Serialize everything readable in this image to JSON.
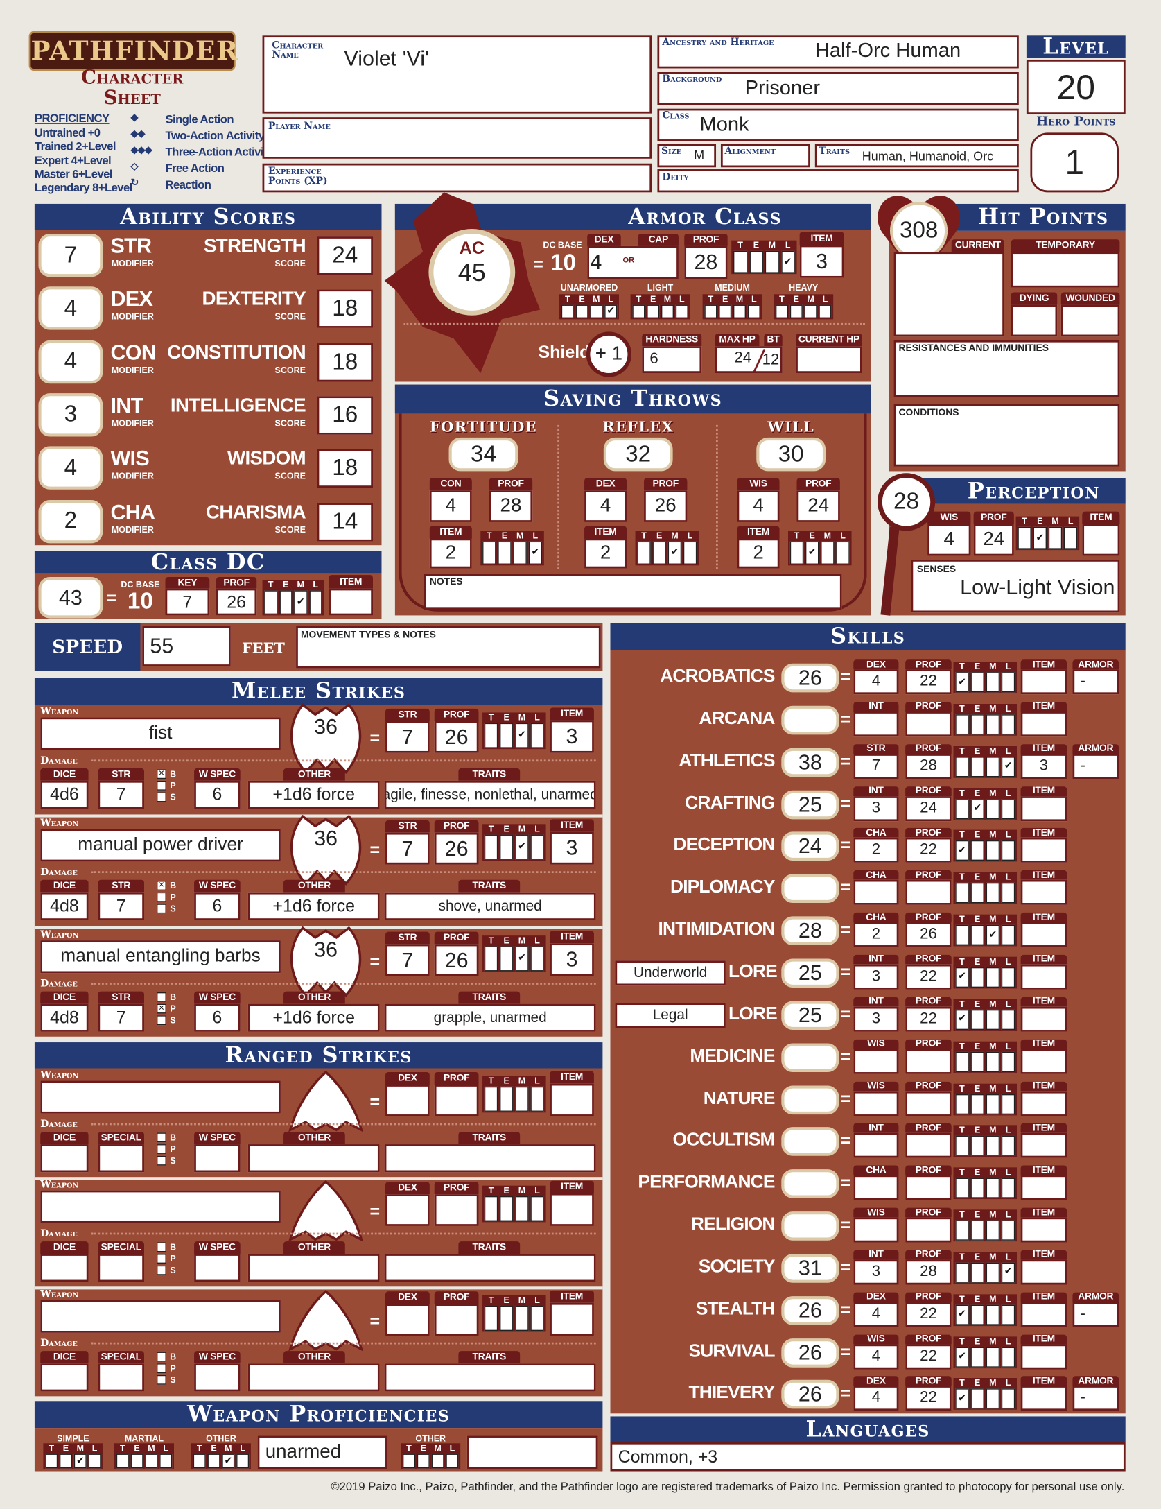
{
  "header": {
    "logo_text": "PATHFINDER",
    "subtitle": "Character Sheet",
    "character_name_label": "Character Name",
    "character_name": "Violet 'Vi'",
    "player_name_label": "Player Name",
    "player_name": "",
    "xp_label": "Experience Points (XP)",
    "xp": "",
    "ancestry_label": "Ancestry and Heritage",
    "ancestry": "Half-Orc Human",
    "background_label": "Background",
    "background": "Prisoner",
    "class_label": "Class",
    "class": "Monk",
    "size_label": "Size",
    "size": "M",
    "alignment_label": "Alignment",
    "alignment": "",
    "traits_label": "Traits",
    "traits": "Human, Humanoid, Orc",
    "deity_label": "Deity",
    "deity": "",
    "level_label": "Level",
    "level": "20",
    "hero_points_label": "Hero Points",
    "hero_points": "1"
  },
  "legend": {
    "proficiency_title": "PROFICIENCY",
    "proficiency": [
      "Untrained +0",
      "Trained 2+Level",
      "Expert 4+Level",
      "Master 6+Level",
      "Legendary 8+Level"
    ],
    "actions": [
      {
        "icon": "single-action-icon",
        "label": "Single Action"
      },
      {
        "icon": "two-action-icon",
        "label": "Two-Action Activity"
      },
      {
        "icon": "three-action-icon",
        "label": "Three-Action Activity"
      },
      {
        "icon": "free-action-icon",
        "label": "Free Action"
      },
      {
        "icon": "reaction-icon",
        "label": "Reaction"
      }
    ]
  },
  "labels": {
    "teml": [
      "T",
      "E",
      "M",
      "L"
    ],
    "bps": [
      "B",
      "P",
      "S"
    ],
    "eq": "=",
    "str": "STR",
    "dex": "DEX",
    "prof": "PROF",
    "item": "ITEM",
    "armor": "ARMOR",
    "dice": "DICE",
    "special": "SPECIAL",
    "wspec": "W SPEC",
    "other": "OTHER",
    "traits": "TRAITS",
    "weapon": "Weapon",
    "damage": "Damage",
    "lore": "LORE"
  },
  "abilities": {
    "title": "Ability Scores",
    "modifier_label": "MODIFIER",
    "score_label": "SCORE",
    "items": [
      {
        "abbr": "STR",
        "name": "STRENGTH",
        "mod": "7",
        "score": "24"
      },
      {
        "abbr": "DEX",
        "name": "DEXTERITY",
        "mod": "4",
        "score": "18"
      },
      {
        "abbr": "CON",
        "name": "CONSTITUTION",
        "mod": "4",
        "score": "18"
      },
      {
        "abbr": "INT",
        "name": "INTELLIGENCE",
        "mod": "3",
        "score": "16"
      },
      {
        "abbr": "WIS",
        "name": "WISDOM",
        "mod": "4",
        "score": "18"
      },
      {
        "abbr": "CHA",
        "name": "CHARISMA",
        "mod": "2",
        "score": "14"
      }
    ]
  },
  "class_dc": {
    "title": "Class DC",
    "value": "43",
    "base_label": "DC BASE",
    "base": "10",
    "key_label": "KEY",
    "key": "7",
    "prof": "26",
    "teml": [
      false,
      false,
      true,
      false
    ],
    "item": ""
  },
  "armor_class": {
    "title": "Armor Class",
    "ac_label": "AC",
    "ac": "45",
    "base_label": "DC BASE",
    "base": "10",
    "dex_label": "DEX",
    "dex": "4",
    "or": "OR",
    "cap_label": "CAP",
    "cap": "",
    "prof": "28",
    "teml": [
      false,
      false,
      false,
      true
    ],
    "item": "3",
    "armor_profs": [
      {
        "label": "UNARMORED",
        "teml": [
          false,
          false,
          false,
          true
        ]
      },
      {
        "label": "LIGHT",
        "teml": [
          false,
          false,
          false,
          false
        ]
      },
      {
        "label": "MEDIUM",
        "teml": [
          false,
          false,
          false,
          false
        ]
      },
      {
        "label": "HEAVY",
        "teml": [
          false,
          false,
          false,
          false
        ]
      }
    ],
    "shield_label": "Shield",
    "shield_bonus": "+ 1",
    "hardness_label": "HARDNESS",
    "hardness": "6",
    "max_hp_label": "MAX HP",
    "bt_label": "BT",
    "max_hp": "24",
    "bt": "12",
    "current_hp_label": "CURRENT HP",
    "current_hp": ""
  },
  "saves": {
    "title": "Saving Throws",
    "notes_label": "NOTES",
    "items": [
      {
        "name": "FORTITUDE",
        "value": "34",
        "ability_label": "CON",
        "ability": "4",
        "prof": "28",
        "item": "2",
        "teml": [
          false,
          false,
          false,
          true
        ]
      },
      {
        "name": "REFLEX",
        "value": "32",
        "ability_label": "DEX",
        "ability": "4",
        "prof": "26",
        "item": "2",
        "teml": [
          false,
          false,
          true,
          false
        ]
      },
      {
        "name": "WILL",
        "value": "30",
        "ability_label": "WIS",
        "ability": "4",
        "prof": "24",
        "item": "2",
        "teml": [
          false,
          true,
          false,
          false
        ]
      }
    ]
  },
  "hit_points": {
    "title": "Hit Points",
    "max": "308",
    "max_label": "MAX",
    "current_label": "CURRENT",
    "temporary_label": "TEMPORARY",
    "dying_label": "DYING",
    "wounded_label": "WOUNDED",
    "resistances_label": "RESISTANCES AND IMMUNITIES",
    "conditions_label": "CONDITIONS"
  },
  "perception": {
    "title": "Perception",
    "value": "28",
    "wis_label": "WIS",
    "wis": "4",
    "prof": "24",
    "teml": [
      false,
      true,
      false,
      false
    ],
    "item": "",
    "senses_label": "SENSES",
    "senses": "Low-Light Vision"
  },
  "speed": {
    "label": "SPEED",
    "value": "55",
    "unit": "FEET",
    "notes_label": "MOVEMENT TYPES & NOTES"
  },
  "melee": {
    "title": "Melee Strikes",
    "items": [
      {
        "weapon": "fist",
        "attack": "36",
        "str": "7",
        "prof": "26",
        "teml": [
          false,
          false,
          true,
          false
        ],
        "item": "3",
        "dice": "4d6",
        "dmg_str": "7",
        "bps": [
          true,
          false,
          false
        ],
        "wspec": "6",
        "other": "+1d6 force",
        "traits": "agile, finesse, nonlethal, unarmed"
      },
      {
        "weapon": "manual power driver",
        "attack": "36",
        "str": "7",
        "prof": "26",
        "teml": [
          false,
          false,
          true,
          false
        ],
        "item": "3",
        "dice": "4d8",
        "dmg_str": "7",
        "bps": [
          true,
          false,
          false
        ],
        "wspec": "6",
        "other": "+1d6 force",
        "traits": "shove, unarmed"
      },
      {
        "weapon": "manual entangling barbs",
        "attack": "36",
        "str": "7",
        "prof": "26",
        "teml": [
          false,
          false,
          true,
          false
        ],
        "item": "3",
        "dice": "4d8",
        "dmg_str": "7",
        "bps": [
          false,
          true,
          false
        ],
        "wspec": "6",
        "other": "+1d6 force",
        "traits": "grapple, unarmed"
      }
    ]
  },
  "ranged": {
    "title": "Ranged Strikes",
    "items": [
      {
        "weapon": "",
        "attack": "",
        "dex": "",
        "prof": "",
        "teml": [
          false,
          false,
          false,
          false
        ],
        "item": "",
        "dice": "",
        "special": "",
        "bps": [
          false,
          false,
          false
        ],
        "wspec": "",
        "other": "",
        "traits": ""
      },
      {
        "weapon": "",
        "attack": "",
        "dex": "",
        "prof": "",
        "teml": [
          false,
          false,
          false,
          false
        ],
        "item": "",
        "dice": "",
        "special": "",
        "bps": [
          false,
          false,
          false
        ],
        "wspec": "",
        "other": "",
        "traits": ""
      },
      {
        "weapon": "",
        "attack": "",
        "dex": "",
        "prof": "",
        "teml": [
          false,
          false,
          false,
          false
        ],
        "item": "",
        "dice": "",
        "special": "",
        "bps": [
          false,
          false,
          false
        ],
        "wspec": "",
        "other": "",
        "traits": ""
      }
    ]
  },
  "weapon_proficiencies": {
    "title": "Weapon Proficiencies",
    "groups": [
      {
        "label": "SIMPLE",
        "teml": [
          false,
          false,
          true,
          false
        ]
      },
      {
        "label": "MARTIAL",
        "teml": [
          false,
          false,
          false,
          false
        ]
      },
      {
        "label": "OTHER",
        "teml": [
          false,
          false,
          true,
          false
        ],
        "value": "unarmed"
      },
      {
        "label": "OTHER",
        "teml": [
          false,
          false,
          false,
          false
        ],
        "value": ""
      }
    ]
  },
  "skills": {
    "title": "Skills",
    "items": [
      {
        "name": "ACROBATICS",
        "value": "26",
        "ability_label": "DEX",
        "ability": "4",
        "prof": "22",
        "teml": [
          true,
          false,
          false,
          false
        ],
        "item": "",
        "armor": "-"
      },
      {
        "name": "ARCANA",
        "value": "",
        "ability_label": "INT",
        "ability": "",
        "prof": "",
        "teml": [
          false,
          false,
          false,
          false
        ],
        "item": ""
      },
      {
        "name": "ATHLETICS",
        "value": "38",
        "ability_label": "STR",
        "ability": "7",
        "prof": "28",
        "teml": [
          false,
          false,
          false,
          true
        ],
        "item": "3",
        "armor": "-"
      },
      {
        "name": "CRAFTING",
        "value": "25",
        "ability_label": "INT",
        "ability": "3",
        "prof": "24",
        "teml": [
          false,
          true,
          false,
          false
        ],
        "item": ""
      },
      {
        "name": "DECEPTION",
        "value": "24",
        "ability_label": "CHA",
        "ability": "2",
        "prof": "22",
        "teml": [
          true,
          false,
          false,
          false
        ],
        "item": ""
      },
      {
        "name": "DIPLOMACY",
        "value": "",
        "ability_label": "CHA",
        "ability": "",
        "prof": "",
        "teml": [
          false,
          false,
          false,
          false
        ],
        "item": ""
      },
      {
        "name": "INTIMIDATION",
        "value": "28",
        "ability_label": "CHA",
        "ability": "2",
        "prof": "26",
        "teml": [
          false,
          false,
          true,
          false
        ],
        "item": ""
      },
      {
        "name": "LORE",
        "lore_topic": "Underworld",
        "value": "25",
        "ability_label": "INT",
        "ability": "3",
        "prof": "22",
        "teml": [
          true,
          false,
          false,
          false
        ],
        "item": ""
      },
      {
        "name": "LORE",
        "lore_topic": "Legal",
        "value": "25",
        "ability_label": "INT",
        "ability": "3",
        "prof": "22",
        "teml": [
          true,
          false,
          false,
          false
        ],
        "item": ""
      },
      {
        "name": "MEDICINE",
        "value": "",
        "ability_label": "WIS",
        "ability": "",
        "prof": "",
        "teml": [
          false,
          false,
          false,
          false
        ],
        "item": ""
      },
      {
        "name": "NATURE",
        "value": "",
        "ability_label": "WIS",
        "ability": "",
        "prof": "",
        "teml": [
          false,
          false,
          false,
          false
        ],
        "item": ""
      },
      {
        "name": "OCCULTISM",
        "value": "",
        "ability_label": "INT",
        "ability": "",
        "prof": "",
        "teml": [
          false,
          false,
          false,
          false
        ],
        "item": ""
      },
      {
        "name": "PERFORMANCE",
        "value": "",
        "ability_label": "CHA",
        "ability": "",
        "prof": "",
        "teml": [
          false,
          false,
          false,
          false
        ],
        "item": ""
      },
      {
        "name": "RELIGION",
        "value": "",
        "ability_label": "WIS",
        "ability": "",
        "prof": "",
        "teml": [
          false,
          false,
          false,
          false
        ],
        "item": ""
      },
      {
        "name": "SOCIETY",
        "value": "31",
        "ability_label": "INT",
        "ability": "3",
        "prof": "28",
        "teml": [
          false,
          false,
          false,
          true
        ],
        "item": ""
      },
      {
        "name": "STEALTH",
        "value": "26",
        "ability_label": "DEX",
        "ability": "4",
        "prof": "22",
        "teml": [
          true,
          false,
          false,
          false
        ],
        "item": "",
        "armor": "-"
      },
      {
        "name": "SURVIVAL",
        "value": "26",
        "ability_label": "WIS",
        "ability": "4",
        "prof": "22",
        "teml": [
          true,
          false,
          false,
          false
        ],
        "item": ""
      },
      {
        "name": "THIEVERY",
        "value": "26",
        "ability_label": "DEX",
        "ability": "4",
        "prof": "22",
        "teml": [
          true,
          false,
          false,
          false
        ],
        "item": "",
        "armor": "-"
      }
    ]
  },
  "languages": {
    "title": "Languages",
    "value": "Common, +3"
  },
  "footer": "©2019 Paizo Inc., Paizo, Pathfinder, and the Pathfinder logo are registered trademarks of Paizo Inc. Permission granted to photocopy for personal use only.",
  "colors": {
    "panel": "#9a4b36",
    "header": "#233a74",
    "accent": "#6d1a1a",
    "paper": "#ebe7e1"
  }
}
